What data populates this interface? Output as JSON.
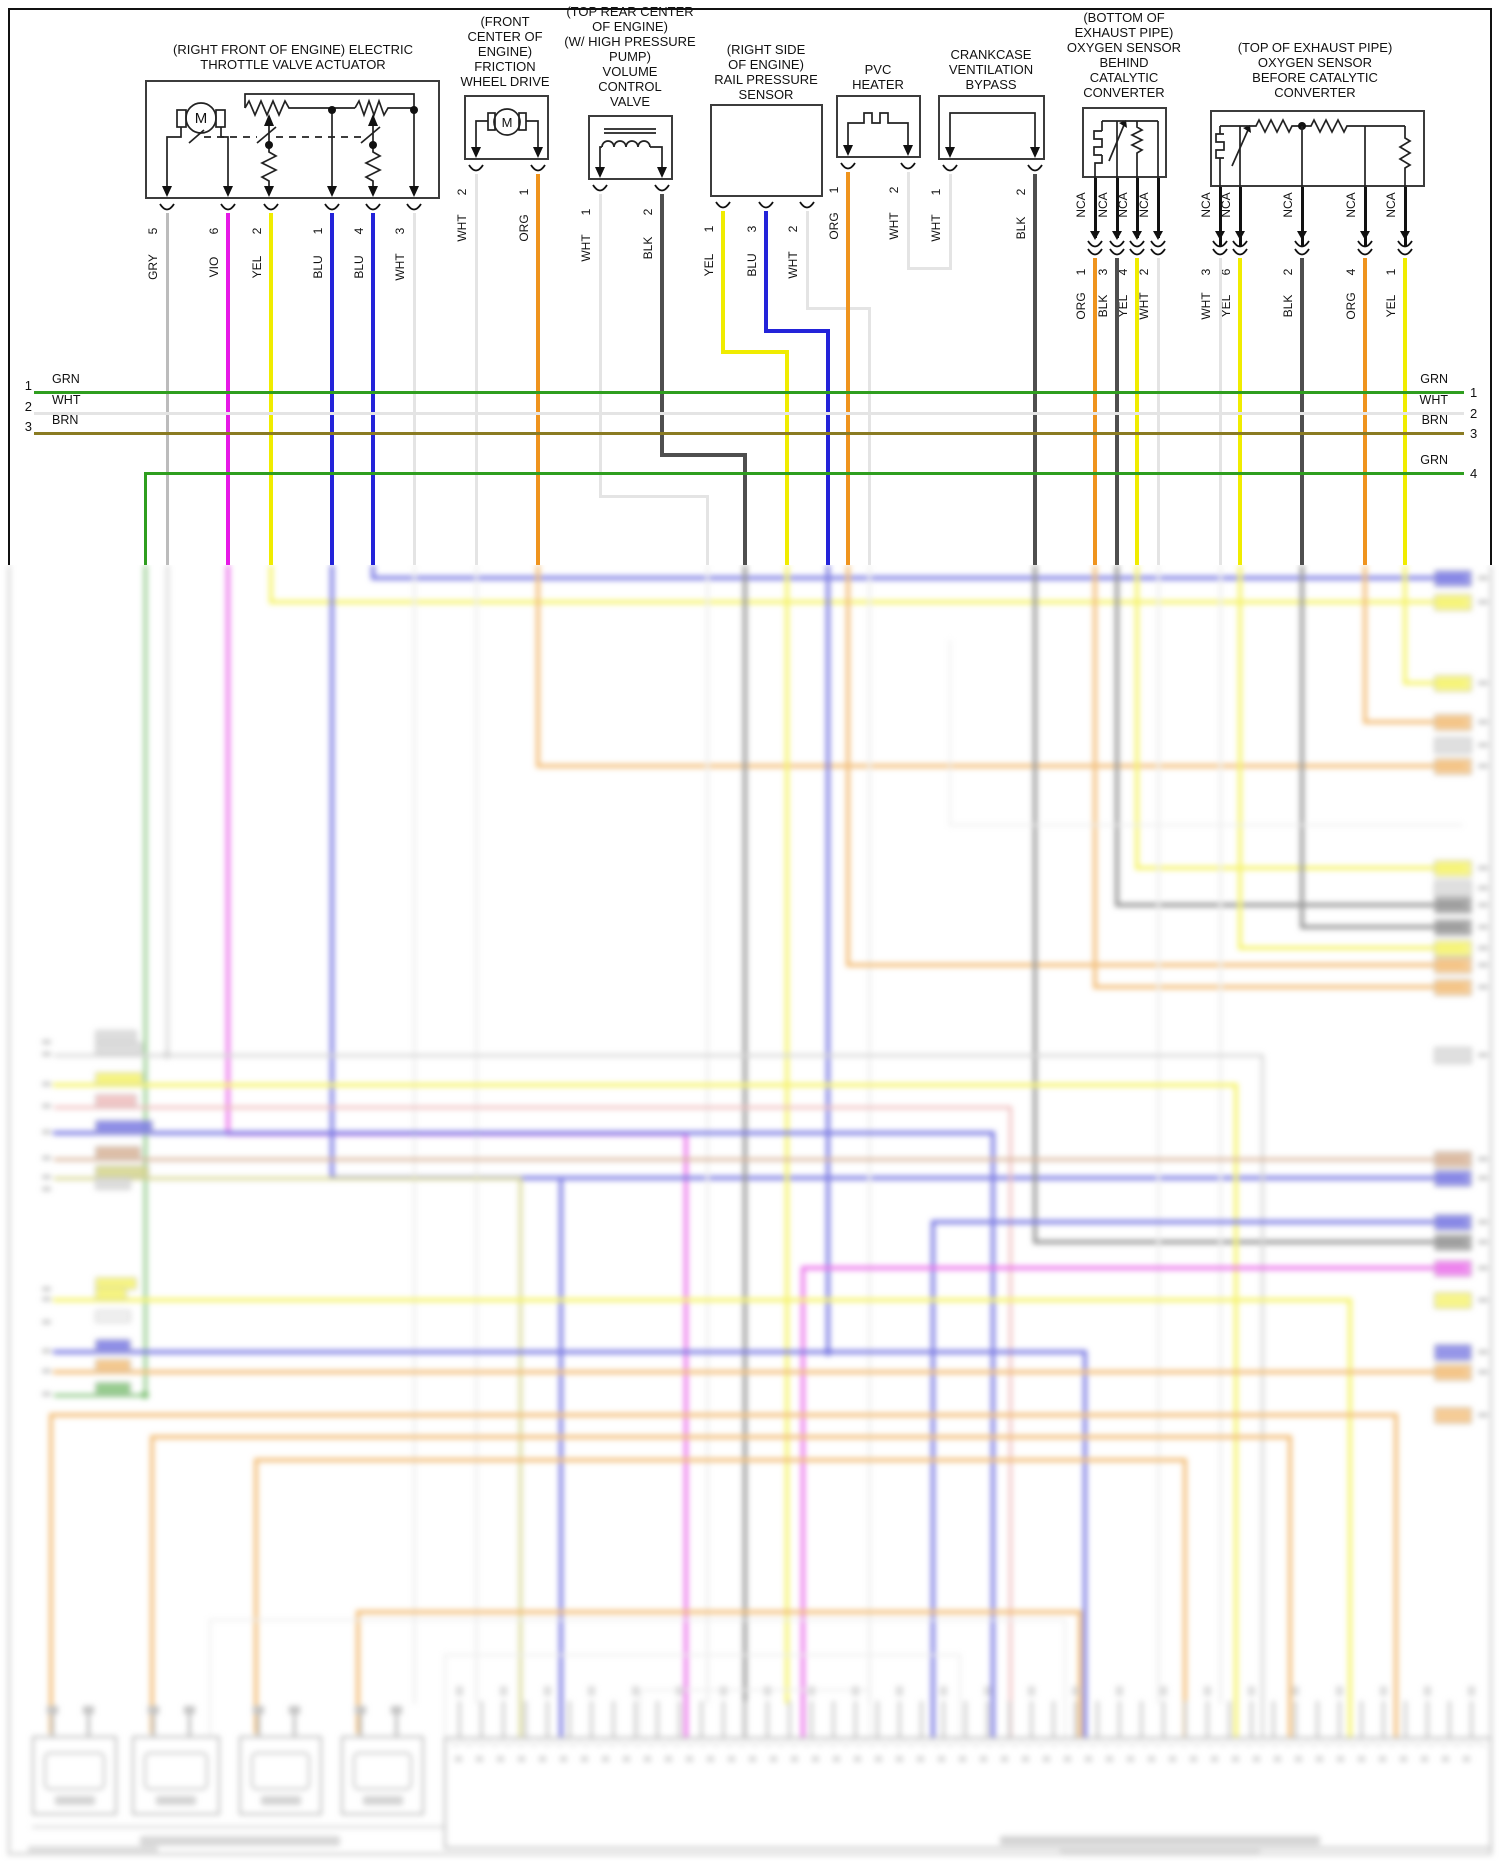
{
  "diagram": {
    "nca_label": "NCA",
    "buses": {
      "left": [
        {
          "num": "1",
          "label": "GRN"
        },
        {
          "num": "2",
          "label": "WHT"
        },
        {
          "num": "3",
          "label": "BRN"
        }
      ],
      "right": [
        {
          "num": "1",
          "label": "GRN"
        },
        {
          "num": "2",
          "label": "WHT"
        },
        {
          "num": "3",
          "label": "BRN"
        },
        {
          "num": "4",
          "label": "GRN"
        }
      ]
    },
    "components": [
      {
        "id": "electric-throttle-valve-actuator",
        "title": [
          "(RIGHT FRONT OF ENGINE) ELECTRIC",
          "THROTTLE VALVE ACTUATOR"
        ],
        "pins": [
          {
            "num": "5",
            "color": "GRY"
          },
          {
            "num": "6",
            "color": "VIO"
          },
          {
            "num": "2",
            "color": "YEL"
          },
          {
            "num": "1",
            "color": "BLU"
          },
          {
            "num": "4",
            "color": "BLU"
          },
          {
            "num": "3",
            "color": "WHT"
          }
        ]
      },
      {
        "id": "friction-wheel-drive",
        "title": [
          "(FRONT",
          "CENTER OF",
          "ENGINE)",
          "FRICTION",
          "WHEEL DRIVE"
        ],
        "pins": [
          {
            "num": "2",
            "color": "WHT"
          },
          {
            "num": "1",
            "color": "ORG"
          }
        ]
      },
      {
        "id": "volume-control-valve",
        "title": [
          "(TOP REAR CENTER",
          "OF ENGINE)",
          "(W/ HIGH PRESSURE",
          "PUMP)",
          "VOLUME",
          "CONTROL",
          "VALVE"
        ],
        "pins": [
          {
            "num": "1",
            "color": "WHT"
          },
          {
            "num": "2",
            "color": "BLK"
          }
        ]
      },
      {
        "id": "rail-pressure-sensor",
        "title": [
          "(RIGHT SIDE",
          "OF ENGINE)",
          "RAIL PRESSURE",
          "SENSOR"
        ],
        "pins": [
          {
            "num": "1",
            "color": "YEL"
          },
          {
            "num": "3",
            "color": "BLU"
          },
          {
            "num": "2",
            "color": "WHT"
          }
        ]
      },
      {
        "id": "pvc-heater",
        "title": [
          "PVC",
          "HEATER"
        ],
        "pins": [
          {
            "num": "1",
            "color": "ORG"
          },
          {
            "num": "2",
            "color": "WHT"
          }
        ]
      },
      {
        "id": "crankcase-ventilation-bypass",
        "title": [
          "CRANKCASE",
          "VENTILATION",
          "BYPASS"
        ],
        "pins": [
          {
            "num": "1",
            "color": "WHT"
          },
          {
            "num": "2",
            "color": "BLK"
          }
        ]
      },
      {
        "id": "oxygen-sensor-behind-catalytic-converter",
        "title": [
          "(BOTTOM OF",
          "EXHAUST PIPE)",
          "OXYGEN SENSOR",
          "BEHIND",
          "CATALYTIC",
          "CONVERTER"
        ],
        "nca_count": 4,
        "pins": [
          {
            "num": "1",
            "color": "ORG"
          },
          {
            "num": "3",
            "color": "BLK"
          },
          {
            "num": "4",
            "color": "YEL"
          },
          {
            "num": "2",
            "color": "WHT"
          }
        ]
      },
      {
        "id": "oxygen-sensor-before-catalytic-converter",
        "title": [
          "(TOP OF EXHAUST PIPE)",
          "OXYGEN SENSOR",
          "BEFORE CATALYTIC",
          "CONVERTER"
        ],
        "nca_count": 5,
        "pins": [
          {
            "num": "3",
            "color": "WHT"
          },
          {
            "num": "6",
            "color": "YEL"
          },
          {
            "num": "2",
            "color": "BLK"
          },
          {
            "num": "4",
            "color": "ORG"
          },
          {
            "num": "1",
            "color": "YEL"
          }
        ]
      }
    ],
    "wire_colors": {
      "GRY": "#bcbcbc",
      "VIO": "#e619e6",
      "YEL": "#f0ec00",
      "BLU": "#2323d9",
      "WHT": "#e4e4e4",
      "ORG": "#ef941e",
      "BLK": "#4f4f4f",
      "GRN": "#2f9e1f",
      "BRN": "#8a7b22",
      "NCA": "#111111",
      "PNK": "#e89090",
      "BRN2": "#c08050",
      "OLV": "#b8b838",
      "FNT": "#e0e0e0"
    }
  }
}
